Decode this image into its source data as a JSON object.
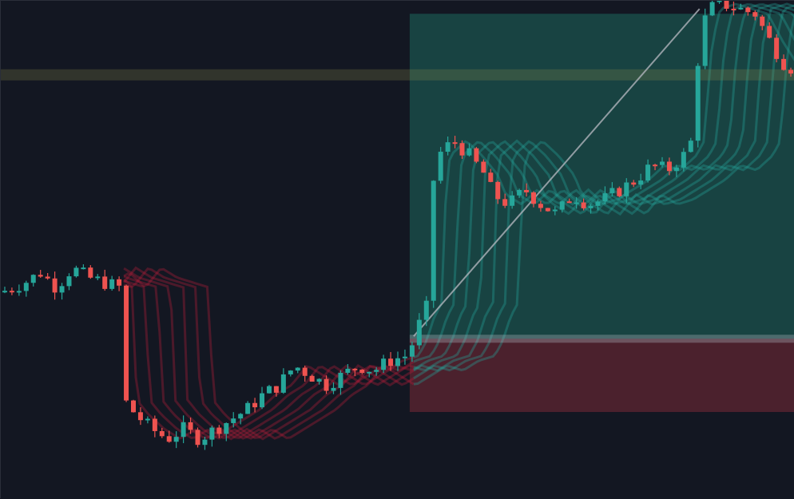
{
  "chart_data": {
    "type": "candlestick",
    "x_range": [
      0,
      100
    ],
    "ylim": [
      0,
      100
    ],
    "grid": false,
    "colors": {
      "background": "#131722",
      "up": "#26a69a",
      "down": "#ef5350",
      "target_zone": "#1f7a6a",
      "stop_zone": "#7a2a36",
      "level_line": "#8a8a4a",
      "entry_line": "#b0b4bc"
    },
    "target_zone": {
      "x": [
        51.5,
        100
      ],
      "y": [
        31.5,
        98
      ]
    },
    "stop_zone": {
      "x": [
        51.5,
        100
      ],
      "y": [
        16.5,
        31.5
      ]
    },
    "entry_level": 31.5,
    "horizontal_level": 85.5,
    "diagonal_line": {
      "x": [
        52,
        88
      ],
      "y": [
        32,
        99
      ]
    },
    "price_path": [
      [
        0,
        41
      ],
      [
        3,
        43
      ],
      [
        5,
        45
      ],
      [
        7,
        42
      ],
      [
        9,
        46
      ],
      [
        11,
        44
      ],
      [
        13,
        43
      ],
      [
        15,
        42
      ],
      [
        15.5,
        19
      ],
      [
        17,
        16
      ],
      [
        19,
        13
      ],
      [
        21,
        11
      ],
      [
        23,
        13
      ],
      [
        25,
        11
      ],
      [
        27,
        13
      ],
      [
        29,
        15
      ],
      [
        31,
        17
      ],
      [
        33,
        20
      ],
      [
        35,
        22
      ],
      [
        37,
        26
      ],
      [
        39,
        24
      ],
      [
        41,
        22
      ],
      [
        43,
        24
      ],
      [
        45,
        26
      ],
      [
        47,
        25
      ],
      [
        49,
        27
      ],
      [
        51,
        28
      ],
      [
        52,
        31
      ],
      [
        53,
        36
      ],
      [
        54,
        39
      ],
      [
        54.5,
        64
      ],
      [
        55,
        69
      ],
      [
        57,
        72
      ],
      [
        59,
        69
      ],
      [
        61,
        65
      ],
      [
        62,
        61
      ],
      [
        64,
        59
      ],
      [
        66,
        62
      ],
      [
        68,
        59
      ],
      [
        70,
        57
      ],
      [
        72,
        61
      ],
      [
        74,
        59
      ],
      [
        76,
        60
      ],
      [
        78,
        62
      ],
      [
        80,
        64
      ],
      [
        82,
        67
      ],
      [
        84,
        66
      ],
      [
        86,
        69
      ],
      [
        87,
        72
      ],
      [
        87.5,
        83
      ],
      [
        88,
        92
      ],
      [
        89,
        99
      ],
      [
        91,
        100
      ],
      [
        93,
        99
      ],
      [
        95,
        98
      ],
      [
        97,
        92
      ],
      [
        99,
        87
      ]
    ],
    "ema_ribbons": [
      {
        "color": "#b71c3a",
        "from": 15.5,
        "to": 52
      },
      {
        "color": "#26a69a",
        "from": 52,
        "to": 100
      }
    ]
  }
}
